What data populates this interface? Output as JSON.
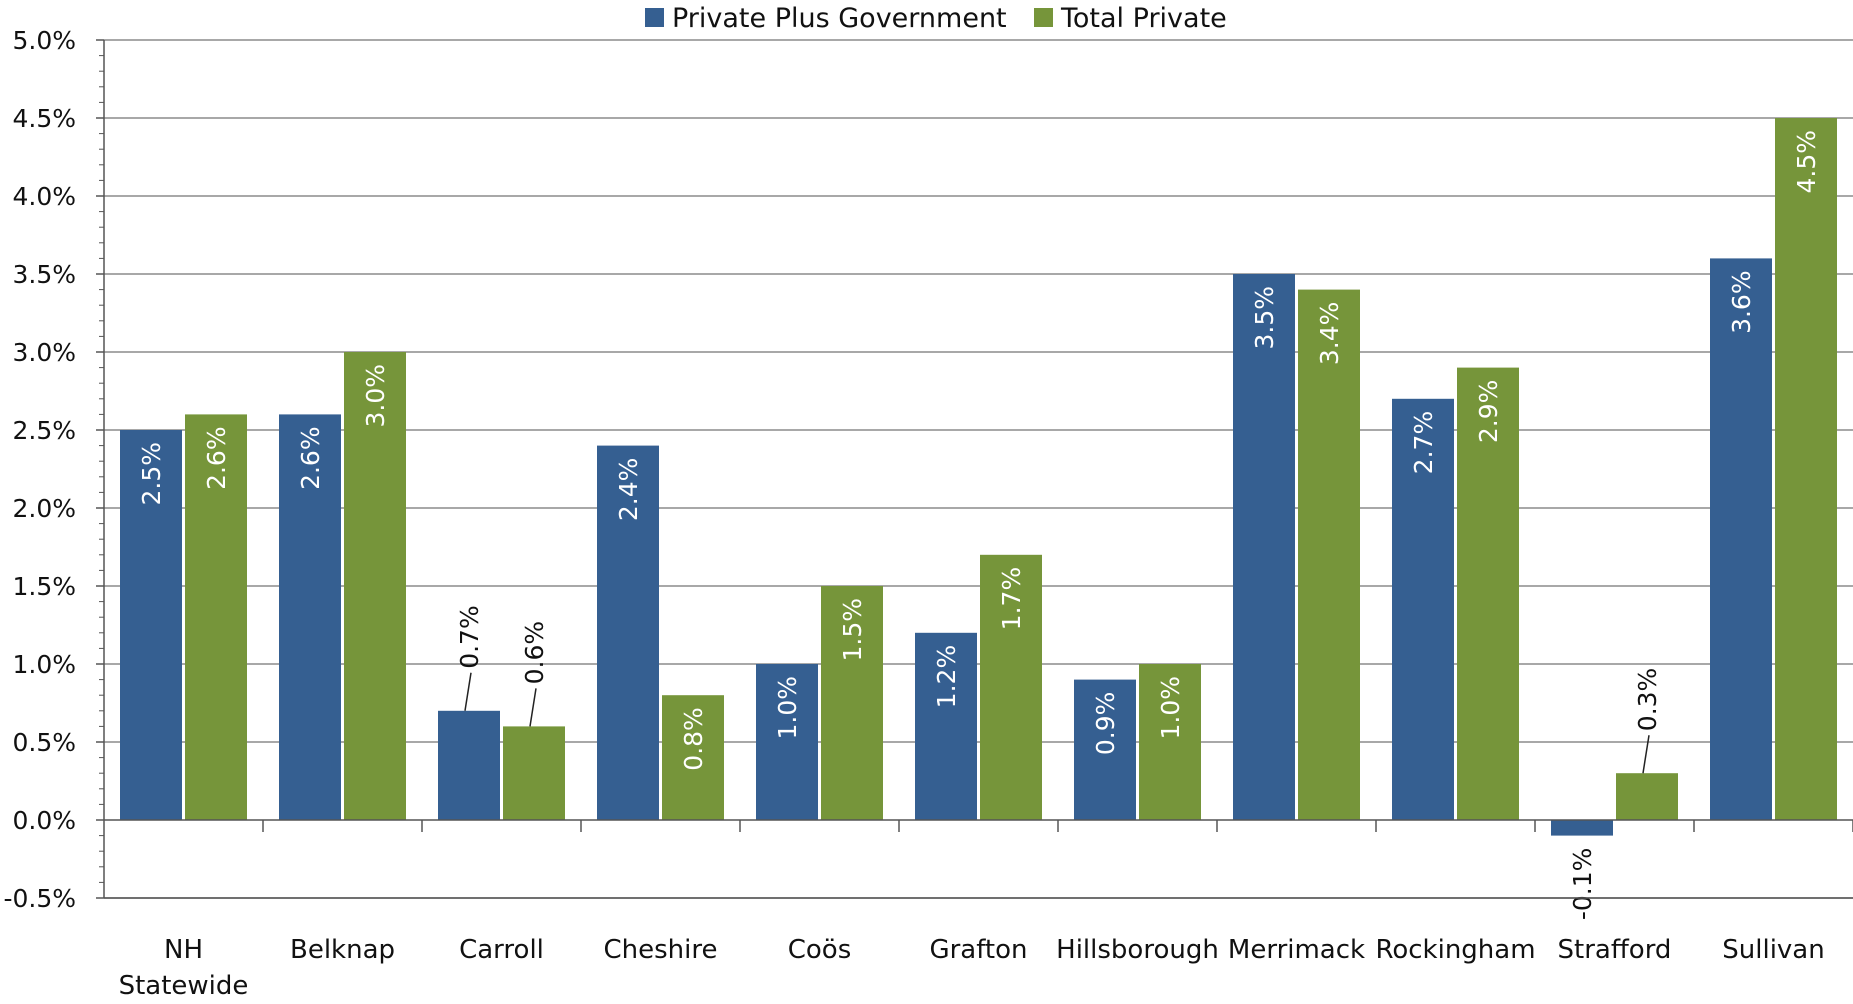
{
  "chart_data": {
    "type": "bar",
    "categories": [
      [
        "NH",
        "Statewide"
      ],
      [
        "Belknap"
      ],
      [
        "Carroll"
      ],
      [
        "Cheshire"
      ],
      [
        "Coös"
      ],
      [
        "Grafton"
      ],
      [
        "Hillsborough"
      ],
      [
        "Merrimack"
      ],
      [
        "Rockingham"
      ],
      [
        "Strafford"
      ],
      [
        "Sullivan"
      ]
    ],
    "series": [
      {
        "name": "Private Plus Government",
        "color": "#355f91",
        "values": [
          2.5,
          2.6,
          0.7,
          2.4,
          1.0,
          1.2,
          0.9,
          3.5,
          2.7,
          -0.1,
          3.6
        ],
        "labels": [
          "2.5%",
          "2.6%",
          "0.7%",
          "2.4%",
          "1.0%",
          "1.2%",
          "0.9%",
          "3.5%",
          "2.7%",
          "-0.1%",
          "3.6%"
        ]
      },
      {
        "name": "Total Private",
        "color": "#76953a",
        "values": [
          2.6,
          3.0,
          0.6,
          0.8,
          1.5,
          1.7,
          1.0,
          3.4,
          2.9,
          0.3,
          4.5
        ],
        "labels": [
          "2.6%",
          "3.0%",
          "0.6%",
          "0.8%",
          "1.5%",
          "1.7%",
          "1.0%",
          "3.4%",
          "2.9%",
          "0.3%",
          "4.5%"
        ]
      }
    ],
    "y_ticks": [
      "5.0%",
      "4.5%",
      "4.0%",
      "3.5%",
      "3.0%",
      "2.5%",
      "2.0%",
      "1.5%",
      "1.0%",
      "0.5%",
      "0.0%",
      "-0.5%"
    ],
    "ylim": [
      -0.5,
      5.0
    ],
    "y_step": 0.5,
    "grid": true,
    "legend_position": "top-center",
    "title": "",
    "xlabel": "",
    "ylabel": ""
  }
}
